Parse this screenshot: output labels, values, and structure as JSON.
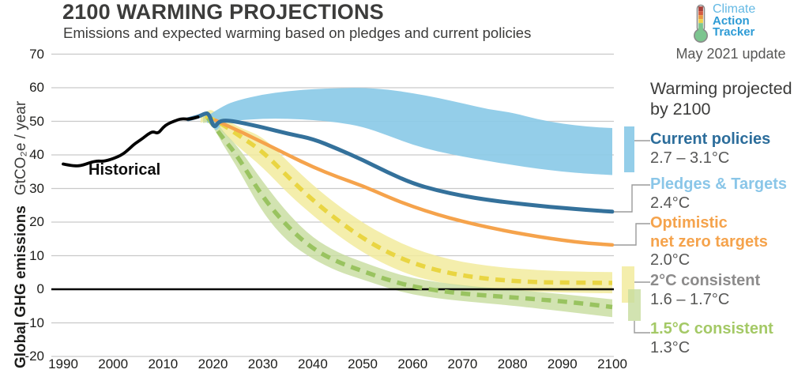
{
  "header": {
    "title": "2100 WARMING PROJECTIONS",
    "subtitle": "Emissions and expected warming based on pledges and current policies"
  },
  "logo": {
    "line1": "Climate",
    "line2": "Action",
    "line3": "Tracker",
    "update_note": "May 2021 update"
  },
  "axes": {
    "y_label_bold": "Global GHG emissions",
    "y_label_regular": "GtCO₂e / year",
    "y_ticks": [
      70,
      60,
      50,
      40,
      30,
      20,
      10,
      0,
      -10,
      -20
    ],
    "x_ticks": [
      1990,
      2000,
      2010,
      2020,
      2030,
      2040,
      2050,
      2060,
      2070,
      2080,
      2090,
      2100
    ]
  },
  "annotations": {
    "historical_label": "Historical"
  },
  "legend": {
    "heading_line1": "Warming projected",
    "heading_line2": "by 2100",
    "items": [
      {
        "label": "Current policies",
        "value": "2.7 – 3.1°C",
        "color": "#2C6D9B"
      },
      {
        "label": "Pledges & Targets",
        "value": "2.4°C",
        "color": "#8AC6E8"
      },
      {
        "label": "Optimistic",
        "label2": "net zero targets",
        "value": "2.0°C",
        "color": "#F5A34C"
      },
      {
        "label": "2°C consistent",
        "value": "1.6 – 1.7°C",
        "color": "#8C8B8B"
      },
      {
        "label": "1.5°C consistent",
        "value": "1.3°C",
        "color": "#A4C966"
      }
    ]
  },
  "colors": {
    "grid": "#C9C9C9",
    "zero_line": "#000000",
    "connector": "#9B9B9B",
    "blue_band": "#8BCAE7",
    "yellow_band": "#F2EB9E",
    "green_band": "#C7DC9E",
    "dark_blue_line": "#34719B",
    "orange_line": "#F5A34C",
    "yellow_dash_line": "#E9D542",
    "green_dash_line": "#99C360",
    "historical_line": "#000000"
  },
  "chart_data": {
    "type": "line",
    "title": "2100 WARMING PROJECTIONS",
    "ylabel": "Global GHG emissions GtCO₂e / year",
    "xlim": [
      1990,
      2100
    ],
    "ylim": [
      -20,
      70
    ],
    "grid": "horizontal",
    "unit": "GtCO2e per year",
    "series": [
      {
        "name": "Historical",
        "style": "solid",
        "color": "#000000",
        "points": [
          [
            1990,
            37.3
          ],
          [
            1991,
            37.0
          ],
          [
            1992,
            36.8
          ],
          [
            1993,
            36.7
          ],
          [
            1994,
            37.0
          ],
          [
            1995,
            37.5
          ],
          [
            1996,
            38.0
          ],
          [
            1997,
            38.2
          ],
          [
            1998,
            38.1
          ],
          [
            1999,
            38.4
          ],
          [
            2000,
            38.9
          ],
          [
            2001,
            39.5
          ],
          [
            2002,
            40.3
          ],
          [
            2003,
            41.5
          ],
          [
            2004,
            42.9
          ],
          [
            2005,
            44.0
          ],
          [
            2006,
            45.0
          ],
          [
            2007,
            46.2
          ],
          [
            2008,
            47.0
          ],
          [
            2009,
            46.3
          ],
          [
            2010,
            48.2
          ],
          [
            2011,
            49.3
          ],
          [
            2012,
            49.9
          ],
          [
            2013,
            50.5
          ],
          [
            2014,
            50.8
          ],
          [
            2015,
            50.6
          ],
          [
            2016,
            50.9
          ],
          [
            2017,
            51.3
          ]
        ]
      },
      {
        "name": "Pledges & Targets",
        "warming": "2.4°C",
        "style": "solid",
        "color": "#34719B",
        "points": [
          [
            2015,
            50.6
          ],
          [
            2017,
            51.3
          ],
          [
            2018.3,
            52.3
          ],
          [
            2019.2,
            52.4
          ],
          [
            2020.2,
            47.8
          ],
          [
            2021.2,
            50.1
          ],
          [
            2023,
            50.3
          ],
          [
            2026,
            49.5
          ],
          [
            2030,
            48.2
          ],
          [
            2035,
            46.3
          ],
          [
            2040,
            44.8
          ],
          [
            2045,
            41.8
          ],
          [
            2050,
            38.5
          ],
          [
            2055,
            34.8
          ],
          [
            2060,
            31.5
          ],
          [
            2065,
            29.4
          ],
          [
            2070,
            27.8
          ],
          [
            2075,
            26.6
          ],
          [
            2080,
            25.7
          ],
          [
            2085,
            24.9
          ],
          [
            2090,
            24.2
          ],
          [
            2095,
            23.6
          ],
          [
            2100,
            23.1
          ]
        ]
      },
      {
        "name": "Optimistic net zero targets",
        "warming": "2.0°C",
        "style": "solid",
        "color": "#F5A34C",
        "points": [
          [
            2020.5,
            50.3
          ],
          [
            2025,
            47.3
          ],
          [
            2030,
            43.7
          ],
          [
            2035,
            40.0
          ],
          [
            2040,
            36.4
          ],
          [
            2045,
            33.4
          ],
          [
            2050,
            30.8
          ],
          [
            2055,
            27.5
          ],
          [
            2060,
            24.6
          ],
          [
            2065,
            22.2
          ],
          [
            2070,
            20.2
          ],
          [
            2075,
            18.5
          ],
          [
            2080,
            17.0
          ],
          [
            2085,
            15.7
          ],
          [
            2090,
            14.6
          ],
          [
            2095,
            13.7
          ],
          [
            2100,
            13.2
          ]
        ]
      },
      {
        "name": "2°C consistent",
        "warming": "1.6 – 1.7°C",
        "style": "dashed",
        "color": "#E9D542",
        "points": [
          [
            2018.5,
            51.5
          ],
          [
            2021,
            50.0
          ],
          [
            2025,
            46.0
          ],
          [
            2030,
            41.0
          ],
          [
            2035,
            33.5
          ],
          [
            2040,
            26.5
          ],
          [
            2045,
            20.5
          ],
          [
            2050,
            15.2
          ],
          [
            2055,
            11.0
          ],
          [
            2060,
            7.8
          ],
          [
            2065,
            5.6
          ],
          [
            2070,
            4.1
          ],
          [
            2075,
            3.1
          ],
          [
            2080,
            2.5
          ],
          [
            2085,
            2.1
          ],
          [
            2090,
            2.0
          ],
          [
            2100,
            1.9
          ]
        ]
      },
      {
        "name": "1.5°C consistent",
        "warming": "1.3°C",
        "style": "dashed",
        "color": "#99C360",
        "points": [
          [
            2019,
            51.0
          ],
          [
            2022,
            45.0
          ],
          [
            2025,
            39.5
          ],
          [
            2030,
            27.3
          ],
          [
            2035,
            18.5
          ],
          [
            2040,
            12.0
          ],
          [
            2045,
            8.1
          ],
          [
            2050,
            5.4
          ],
          [
            2055,
            2.8
          ],
          [
            2060,
            0.8
          ],
          [
            2065,
            -0.4
          ],
          [
            2070,
            -1.3
          ],
          [
            2075,
            -1.9
          ],
          [
            2080,
            -2.4
          ],
          [
            2085,
            -3.0
          ],
          [
            2090,
            -3.6
          ],
          [
            2095,
            -4.4
          ],
          [
            2100,
            -5.3
          ]
        ]
      }
    ],
    "bands": [
      {
        "name": "2°C consistent range",
        "color": "#F2EB9E",
        "opacity": 0.85,
        "upper": [
          [
            2017.5,
            51.0
          ],
          [
            2019,
            54.0
          ],
          [
            2021,
            52.3
          ],
          [
            2025,
            48.3
          ],
          [
            2030,
            45.5
          ],
          [
            2035,
            38.0
          ],
          [
            2040,
            31.0
          ],
          [
            2045,
            25.0
          ],
          [
            2050,
            19.8
          ],
          [
            2055,
            15.6
          ],
          [
            2060,
            12.2
          ],
          [
            2065,
            9.8
          ],
          [
            2070,
            8.1
          ],
          [
            2075,
            7.0
          ],
          [
            2080,
            6.2
          ],
          [
            2090,
            5.3
          ],
          [
            2100,
            5.1
          ]
        ],
        "lower": [
          [
            2017.5,
            49.5
          ],
          [
            2019,
            50.5
          ],
          [
            2021,
            48.0
          ],
          [
            2025,
            42.5
          ],
          [
            2030,
            36.3
          ],
          [
            2035,
            28.5
          ],
          [
            2040,
            22.0
          ],
          [
            2045,
            16.0
          ],
          [
            2050,
            11.0
          ],
          [
            2055,
            7.0
          ],
          [
            2060,
            4.0
          ],
          [
            2065,
            2.1
          ],
          [
            2070,
            0.9
          ],
          [
            2075,
            0.1
          ],
          [
            2080,
            -0.4
          ],
          [
            2090,
            -1.0
          ],
          [
            2100,
            -1.2
          ]
        ]
      },
      {
        "name": "1.5°C consistent range",
        "color": "#C7DC9E",
        "opacity": 0.8,
        "upper": [
          [
            2018,
            51.5
          ],
          [
            2019.5,
            52.5
          ],
          [
            2022,
            47.0
          ],
          [
            2025,
            42.5
          ],
          [
            2030,
            32.0
          ],
          [
            2035,
            22.5
          ],
          [
            2040,
            15.3
          ],
          [
            2045,
            10.9
          ],
          [
            2050,
            8.1
          ],
          [
            2055,
            5.4
          ],
          [
            2060,
            3.3
          ],
          [
            2065,
            2.1
          ],
          [
            2070,
            1.2
          ],
          [
            2075,
            0.5
          ],
          [
            2080,
            -0.1
          ],
          [
            2090,
            -1.4
          ],
          [
            2100,
            -3.0
          ]
        ],
        "lower": [
          [
            2018,
            49.5
          ],
          [
            2019.5,
            49.8
          ],
          [
            2022,
            43.0
          ],
          [
            2025,
            36.0
          ],
          [
            2030,
            22.6
          ],
          [
            2035,
            14.0
          ],
          [
            2040,
            9.0
          ],
          [
            2045,
            5.3
          ],
          [
            2050,
            2.9
          ],
          [
            2055,
            0.4
          ],
          [
            2060,
            -1.6
          ],
          [
            2065,
            -2.7
          ],
          [
            2070,
            -3.5
          ],
          [
            2075,
            -4.2
          ],
          [
            2080,
            -4.9
          ],
          [
            2090,
            -6.5
          ],
          [
            2100,
            -8.3
          ]
        ]
      },
      {
        "name": "Current policies range",
        "warming": "2.7 – 3.1°C",
        "color": "#8BCAE7",
        "opacity": 0.92,
        "upper": [
          [
            2018.8,
            51.5
          ],
          [
            2022,
            54.6
          ],
          [
            2025,
            56.3
          ],
          [
            2030,
            58.0
          ],
          [
            2035,
            59.0
          ],
          [
            2040,
            59.6
          ],
          [
            2045,
            59.9
          ],
          [
            2050,
            60.0
          ],
          [
            2055,
            59.5
          ],
          [
            2060,
            58.4
          ],
          [
            2065,
            57.0
          ],
          [
            2070,
            55.4
          ],
          [
            2075,
            53.6
          ],
          [
            2080,
            52.6
          ],
          [
            2085,
            50.6
          ],
          [
            2090,
            49.3
          ],
          [
            2095,
            48.4
          ],
          [
            2100,
            48.0
          ]
        ],
        "lower": [
          [
            2018.8,
            49.5
          ],
          [
            2019.8,
            50.0
          ],
          [
            2020.5,
            46.8
          ],
          [
            2021.5,
            48.8
          ],
          [
            2023,
            49.8
          ],
          [
            2025,
            50.3
          ],
          [
            2030,
            50.8
          ],
          [
            2035,
            50.8
          ],
          [
            2040,
            50.4
          ],
          [
            2045,
            49.7
          ],
          [
            2050,
            48.4
          ],
          [
            2055,
            45.8
          ],
          [
            2060,
            43.0
          ],
          [
            2065,
            41.0
          ],
          [
            2070,
            39.5
          ],
          [
            2075,
            38.2
          ],
          [
            2080,
            37.0
          ],
          [
            2085,
            35.9
          ],
          [
            2090,
            35.0
          ],
          [
            2095,
            34.4
          ],
          [
            2100,
            34.0
          ]
        ]
      }
    ]
  }
}
